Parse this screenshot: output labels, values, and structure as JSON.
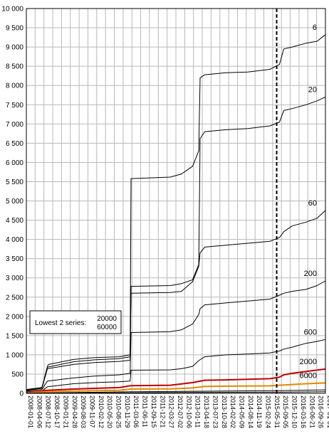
{
  "chart_data": {
    "type": "line",
    "title": "",
    "xlabel": "",
    "ylabel": "",
    "ylim": [
      0,
      10000
    ],
    "y_ticks": [
      0,
      500,
      1000,
      1500,
      2000,
      2500,
      3000,
      3500,
      4000,
      4500,
      5000,
      5500,
      6000,
      6500,
      7000,
      7500,
      8000,
      8500,
      9000,
      9500,
      10000
    ],
    "y_tick_labels": [
      "0",
      "500",
      "1 000",
      "1 500",
      "2 000",
      "2 500",
      "3 000",
      "3 500",
      "4 000",
      "4 500",
      "5 000",
      "5 500",
      "6 000",
      "6 500",
      "7 000",
      "7 500",
      "8 000",
      "8 500",
      "9 000",
      "9 500",
      "10 000"
    ],
    "x_range": [
      "2008-01-01",
      "2017-01-01"
    ],
    "x_tick_labels": [
      "2008-01-01",
      "2008-04-06",
      "2008-07-12",
      "2008-10-17",
      "2009-01-21",
      "2009-04-28",
      "2009-08-03",
      "2009-11-07",
      "2010-02-12",
      "2010-05-20",
      "2010-08-25",
      "2010-11-29",
      "2011-03-06",
      "2011-06-11",
      "2011-09-15",
      "2011-12-21",
      "2012-03-27",
      "2012-07-02",
      "2012-10-06",
      "2013-01-11",
      "2013-04-18",
      "2013-07-23",
      "2013-10-28",
      "2014-02-02",
      "2014-05-09",
      "2014-08-14",
      "2014-11-19",
      "2015-02-24",
      "2015-05-31",
      "2015-09-05",
      "2015-12-10",
      "2016-03-16",
      "2016-06-21",
      "2016-09-26",
      "2017-01-01"
    ],
    "grid": true,
    "vline": {
      "x": "2015-07-15",
      "style": "dashed"
    },
    "legend_note": {
      "line1": "Lowest 2 series:",
      "values": [
        "20000",
        "60000"
      ]
    },
    "series": [
      {
        "name": "6",
        "color": "#000000",
        "x": [
          "2008-01-01",
          "2008-06-20",
          "2008-08-20",
          "2008-09-01",
          "2009-06-01",
          "2010-01-20",
          "2010-10-20",
          "2011-02-15",
          "2011-02-25",
          "2012-05-01",
          "2012-09-01",
          "2012-11-01",
          "2013-01-01",
          "2013-03-10",
          "2013-03-25",
          "2013-05-15",
          "2014-01-01",
          "2014-09-01",
          "2015-05-01",
          "2015-08-15",
          "2015-10-01",
          "2016-01-01",
          "2016-06-01",
          "2016-10-01",
          "2016-12-31"
        ],
        "y": [
          100,
          150,
          700,
          750,
          880,
          930,
          950,
          1000,
          5580,
          5620,
          5700,
          5800,
          5900,
          6300,
          8200,
          8280,
          8330,
          8350,
          8420,
          8550,
          8950,
          9000,
          9100,
          9150,
          9320
        ]
      },
      {
        "name": "20",
        "color": "#000000",
        "x": [
          "2008-01-01",
          "2008-06-20",
          "2008-08-20",
          "2009-06-01",
          "2010-01-20",
          "2010-10-20",
          "2011-02-15",
          "2011-02-25",
          "2012-05-01",
          "2012-09-01",
          "2013-01-01",
          "2013-03-10",
          "2013-03-25",
          "2013-05-15",
          "2014-01-01",
          "2014-09-01",
          "2015-05-01",
          "2015-08-15",
          "2015-10-01",
          "2016-01-01",
          "2016-06-01",
          "2016-10-01",
          "2016-12-31"
        ],
        "y": [
          90,
          140,
          680,
          820,
          870,
          900,
          950,
          2780,
          2800,
          2850,
          2950,
          3350,
          6620,
          6800,
          6850,
          6880,
          6950,
          7050,
          7350,
          7400,
          7500,
          7600,
          7700
        ]
      },
      {
        "name": "60",
        "color": "#000000",
        "x": [
          "2008-01-01",
          "2008-06-20",
          "2008-08-20",
          "2009-06-01",
          "2010-01-20",
          "2010-10-20",
          "2011-02-15",
          "2011-02-25",
          "2012-05-01",
          "2012-09-01",
          "2013-01-01",
          "2013-03-10",
          "2013-03-25",
          "2013-05-15",
          "2014-01-01",
          "2014-09-01",
          "2015-05-01",
          "2015-08-15",
          "2015-10-01",
          "2016-01-01",
          "2016-06-01",
          "2016-10-01",
          "2016-12-31"
        ],
        "y": [
          80,
          130,
          640,
          750,
          800,
          830,
          860,
          2600,
          2620,
          2650,
          2900,
          3300,
          3650,
          3800,
          3850,
          3900,
          3950,
          4050,
          4200,
          4350,
          4450,
          4550,
          4750
        ]
      },
      {
        "name": "200",
        "color": "#000000",
        "x": [
          "2008-01-01",
          "2008-06-20",
          "2008-08-20",
          "2009-06-01",
          "2010-01-20",
          "2010-10-20",
          "2011-02-15",
          "2011-02-25",
          "2012-05-01",
          "2012-09-01",
          "2013-01-01",
          "2013-03-10",
          "2013-03-25",
          "2013-05-15",
          "2014-01-01",
          "2014-09-01",
          "2015-05-01",
          "2015-08-15",
          "2015-10-01",
          "2016-01-01",
          "2016-06-01",
          "2016-10-01",
          "2016-12-31"
        ],
        "y": [
          60,
          100,
          320,
          400,
          450,
          480,
          520,
          1580,
          1600,
          1650,
          1800,
          2050,
          2200,
          2300,
          2350,
          2400,
          2450,
          2550,
          2600,
          2650,
          2700,
          2800,
          2920
        ]
      },
      {
        "name": "600",
        "color": "#000000",
        "x": [
          "2008-01-01",
          "2008-06-20",
          "2008-08-20",
          "2009-06-01",
          "2010-01-20",
          "2010-10-20",
          "2011-02-15",
          "2011-02-25",
          "2012-05-01",
          "2012-09-01",
          "2013-01-01",
          "2013-03-10",
          "2013-05-15",
          "2014-01-01",
          "2014-09-01",
          "2015-05-01",
          "2015-08-15",
          "2015-10-01",
          "2016-01-01",
          "2016-06-01",
          "2016-10-01",
          "2016-12-31"
        ],
        "y": [
          40,
          60,
          170,
          250,
          280,
          300,
          320,
          600,
          610,
          640,
          700,
          850,
          950,
          1000,
          1020,
          1050,
          1100,
          1150,
          1200,
          1300,
          1350,
          1400
        ]
      },
      {
        "name": "2000",
        "color": "#c00000",
        "x": [
          "2008-01-01",
          "2008-08-20",
          "2009-06-01",
          "2010-01-20",
          "2010-10-20",
          "2011-02-25",
          "2012-05-01",
          "2013-01-01",
          "2013-05-15",
          "2014-01-01",
          "2015-05-01",
          "2015-08-15",
          "2015-10-01",
          "2016-01-01",
          "2016-06-01",
          "2016-12-31"
        ],
        "y": [
          20,
          80,
          110,
          130,
          150,
          200,
          210,
          280,
          340,
          350,
          380,
          420,
          480,
          520,
          570,
          630
        ]
      },
      {
        "name": "6000",
        "color": "#e08a00",
        "x": [
          "2008-01-01",
          "2008-08-20",
          "2009-06-01",
          "2010-10-20",
          "2011-02-25",
          "2012-05-01",
          "2013-01-01",
          "2013-05-15",
          "2014-01-01",
          "2015-05-01",
          "2015-08-15",
          "2016-01-01",
          "2016-06-01",
          "2016-12-31"
        ],
        "y": [
          10,
          40,
          60,
          80,
          110,
          115,
          140,
          180,
          185,
          195,
          210,
          230,
          250,
          270
        ]
      },
      {
        "name": "20000",
        "color": "#000000",
        "x": [
          "2008-01-01",
          "2009-06-01",
          "2011-02-25",
          "2013-05-15",
          "2015-08-15",
          "2016-12-31"
        ],
        "y": [
          5,
          20,
          40,
          55,
          70,
          90
        ]
      },
      {
        "name": "60000",
        "color": "#000000",
        "x": [
          "2008-01-01",
          "2009-06-01",
          "2011-02-25",
          "2013-05-15",
          "2015-08-15",
          "2016-12-31"
        ],
        "y": [
          2,
          8,
          15,
          25,
          30,
          40
        ]
      }
    ],
    "series_labels_shown": [
      "6",
      "20",
      "60",
      "200",
      "600",
      "2000",
      "6000"
    ]
  }
}
